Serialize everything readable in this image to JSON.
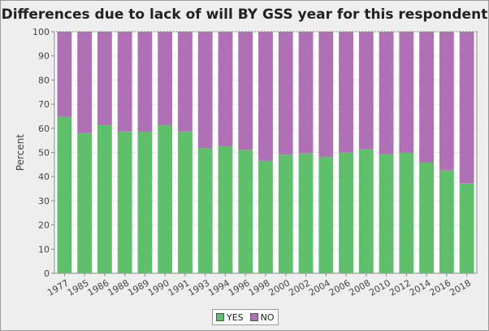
{
  "chart_data": {
    "type": "bar",
    "stacked": true,
    "title": "Differences due to lack of will BY GSS year for this respondent",
    "xlabel": "",
    "ylabel": "Percent",
    "ylim": [
      0,
      100
    ],
    "yticks": [
      0,
      10,
      20,
      30,
      40,
      50,
      60,
      70,
      80,
      90,
      100
    ],
    "grid": true,
    "legend_position": "bottom",
    "categories": [
      "1977",
      "1985",
      "1986",
      "1988",
      "1989",
      "1990",
      "1991",
      "1993",
      "1994",
      "1996",
      "1998",
      "2000",
      "2002",
      "2004",
      "2006",
      "2008",
      "2010",
      "2012",
      "2014",
      "2016",
      "2018"
    ],
    "series": [
      {
        "name": "YES",
        "color": "#5fbf6a",
        "values": [
          64.7,
          58.0,
          61.3,
          58.8,
          58.6,
          61.3,
          58.7,
          51.8,
          52.7,
          51.1,
          46.5,
          49.1,
          49.7,
          48.3,
          49.9,
          51.5,
          49.2,
          50.0,
          45.8,
          42.8,
          37.3
        ]
      },
      {
        "name": "NO",
        "color": "#b070b6",
        "values": [
          35.3,
          42.0,
          38.7,
          41.2,
          41.4,
          38.7,
          41.3,
          48.2,
          47.3,
          48.9,
          53.5,
          50.9,
          50.3,
          51.7,
          50.1,
          48.5,
          50.8,
          50.0,
          54.2,
          57.2,
          62.7
        ]
      }
    ]
  }
}
